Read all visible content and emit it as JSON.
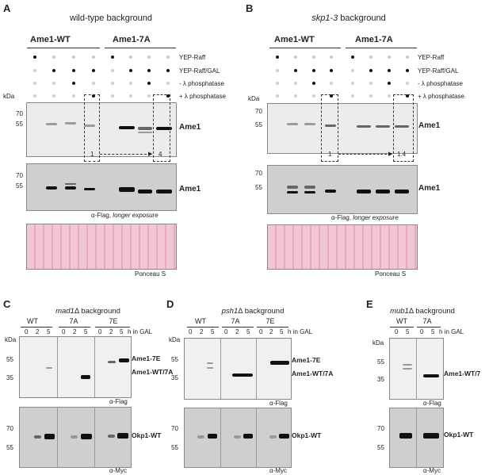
{
  "panels": {
    "A": {
      "letter": "A",
      "title": "wild-type background"
    },
    "B": {
      "letter": "B",
      "title_italic": "skp1-3",
      "title_rest": " background"
    },
    "C": {
      "letter": "C",
      "title_italic": "mad1",
      "title_rest": "Δ background"
    },
    "D": {
      "letter": "D",
      "title_italic": "psh1",
      "title_rest": "Δ background"
    },
    "E": {
      "letter": "E",
      "title_italic": "mub1",
      "title_rest": "Δ background"
    }
  },
  "top": {
    "group_wt": "Ame1-WT",
    "group_7a": "Ame1-7A",
    "rows": [
      "YEP-Raff",
      "YEP-Raff/GAL",
      "- λ phosphatase",
      "+ λ phosphatase"
    ],
    "kda": "kDa",
    "marker_70": "70",
    "marker_55": "55",
    "protein": "Ame1",
    "quant_A_left": "1",
    "quant_A_right": "4",
    "quant_B_left": "1",
    "quant_B_right": "1.4",
    "antibody_prefix": "α-Flag, ",
    "antibody_italic": "longer exposure",
    "ponceau": "Ponceau S"
  },
  "bottom": {
    "kda": "kDa",
    "groups_C": [
      "WT",
      "7A",
      "7E"
    ],
    "groups_D": [
      "WT",
      "7A",
      "7E"
    ],
    "groups_E": [
      "WT",
      "7A"
    ],
    "times": [
      "0",
      "2",
      "5"
    ],
    "times_E": [
      "0",
      "5"
    ],
    "h_in_gal": "h in GAL",
    "m55": "55",
    "m35": "35",
    "m70": "70",
    "prot_7e": "Ame1-7E",
    "prot_wt7a": "Ame1-WT/7A",
    "prot_wt7_E": "Ame1-WT/7",
    "okp1": "Okp1-WT",
    "flag": "α-Flag",
    "myc": "α-Myc"
  }
}
